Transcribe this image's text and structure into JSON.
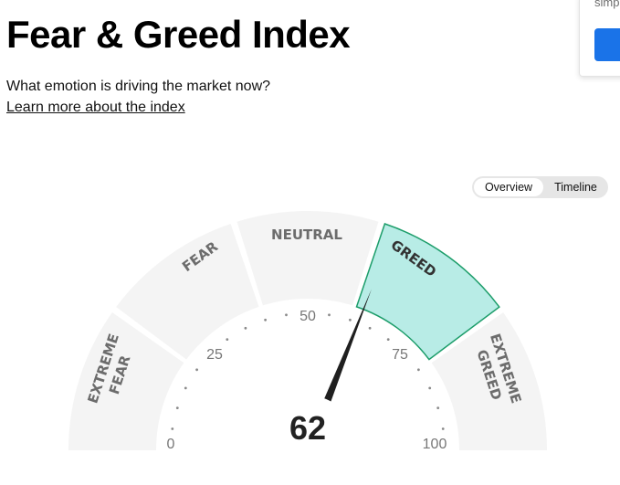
{
  "header": {
    "title": "Fear & Greed Index",
    "subtitle": "What emotion is driving the market now?",
    "learn_more": "Learn more about the index"
  },
  "popup": {
    "text": "simp"
  },
  "toggle": {
    "overview": "Overview",
    "timeline": "Timeline",
    "selected": "Overview"
  },
  "gauge": {
    "value": "62",
    "value_number": 62,
    "scale_labels": {
      "s0": "0",
      "s25": "25",
      "s50": "50",
      "s75": "75",
      "s100": "100"
    },
    "segments": {
      "extreme_fear": [
        "EXTREME",
        "FEAR"
      ],
      "fear": "FEAR",
      "neutral": "NEUTRAL",
      "greed": "GREED",
      "extreme_greed": [
        "EXTREME",
        "GREED"
      ]
    },
    "active_segment": "greed",
    "colors": {
      "segment_fill": "#f4f4f4",
      "active_fill": "#b8ece6",
      "active_border": "#1c9d6a",
      "label": "#6c6c6c",
      "needle": "#1f1f1f"
    }
  }
}
